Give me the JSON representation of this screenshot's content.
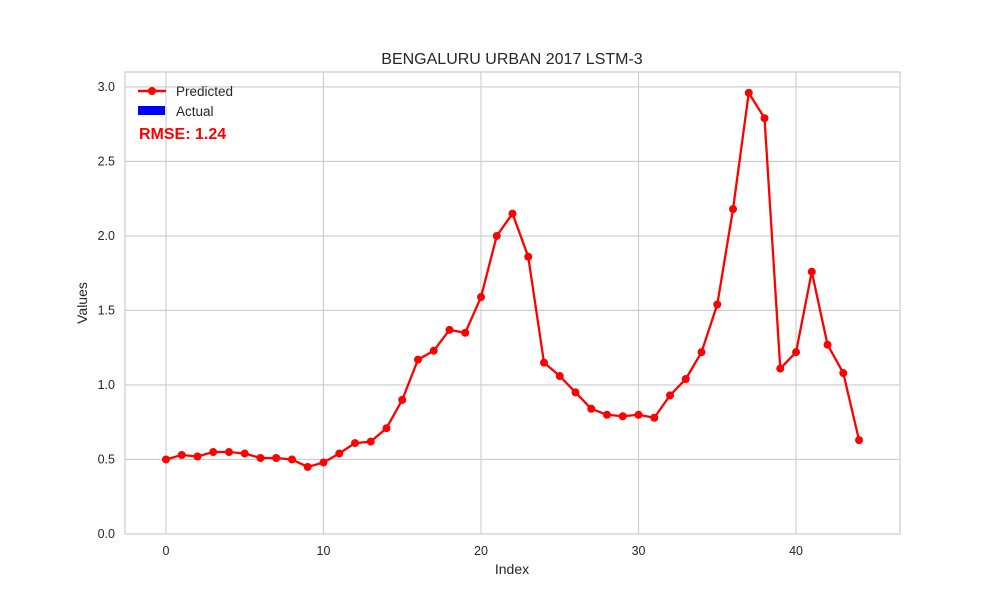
{
  "chart_data": {
    "type": "line",
    "title": "BENGALURU URBAN 2017 LSTM-3",
    "xlabel": "Index",
    "ylabel": "Values",
    "xlim": [
      -2.6,
      46.6
    ],
    "ylim": [
      0.0,
      3.1
    ],
    "xticks": [
      0,
      10,
      20,
      30,
      40
    ],
    "yticks": [
      0.0,
      0.5,
      1.0,
      1.5,
      2.0,
      2.5,
      3.0
    ],
    "grid": true,
    "legend_position": "top-left",
    "series": [
      {
        "name": "Predicted",
        "color": "#ff0000",
        "marker": "circle",
        "x": [
          0,
          1,
          2,
          3,
          4,
          5,
          6,
          7,
          8,
          9,
          10,
          11,
          12,
          13,
          14,
          15,
          16,
          17,
          18,
          19,
          20,
          21,
          22,
          23,
          24,
          25,
          26,
          27,
          28,
          29,
          30,
          31,
          32,
          33,
          34,
          35,
          36,
          37,
          38,
          39,
          40,
          41,
          42,
          43,
          44
        ],
        "y": [
          0.5,
          0.53,
          0.52,
          0.55,
          0.55,
          0.54,
          0.51,
          0.51,
          0.5,
          0.45,
          0.48,
          0.54,
          0.61,
          0.62,
          0.71,
          0.9,
          1.17,
          1.23,
          1.37,
          1.35,
          1.59,
          2.0,
          2.15,
          1.86,
          1.15,
          1.06,
          0.95,
          0.84,
          0.8,
          0.79,
          0.8,
          0.78,
          0.93,
          1.04,
          1.22,
          1.54,
          2.18,
          2.96,
          2.79,
          1.11,
          1.22,
          1.76,
          1.27,
          1.08,
          0.63
        ]
      },
      {
        "name": "Actual",
        "color": "#0000ff",
        "x": [],
        "y": []
      }
    ],
    "annotation": {
      "text": "RMSE: 1.24",
      "color": "#ff0000"
    }
  }
}
